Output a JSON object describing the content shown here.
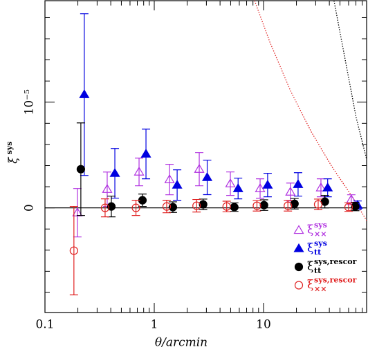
{
  "chart_data": {
    "type": "errorbar",
    "xlabel": "θ/arcmin",
    "ylabel": "ξ",
    "ylabel_superscript": "sys",
    "xscale": "log",
    "xlim": [
      0.1,
      87.7
    ],
    "ylim": [
      -9.9e-06,
      1.96e-05
    ],
    "xticks": [
      0.1,
      1,
      10
    ],
    "xminorticks": [
      0.2,
      0.3,
      0.4,
      0.5,
      0.6,
      0.7,
      0.8,
      0.9,
      2,
      3,
      4,
      5,
      6,
      7,
      8,
      9,
      20,
      30,
      40,
      50,
      60,
      70,
      80
    ],
    "yticks": [
      0,
      {
        "value": 1e-05,
        "label": "10⁻⁵"
      }
    ],
    "yminorticks": [
      -8e-06,
      -6e-06,
      -4e-06,
      -2e-06,
      2e-06,
      4e-06,
      6e-06,
      8e-06,
      1.2e-05,
      1.4e-05,
      1.6e-05,
      1.8e-05
    ],
    "hline": 0,
    "legend": "lower right",
    "series": [
      {
        "name": "ξ",
        "superscript": "sys",
        "subscript": "××",
        "color": "#b030e0",
        "marker": "open-triangle",
        "x": [
          0.198,
          0.371,
          0.726,
          1.38,
          2.58,
          4.97,
          9.3,
          17.6,
          33.5,
          63.5
        ],
        "values": [
          -4.6e-07,
          1.76e-06,
          3.4e-06,
          2.68e-06,
          3.66e-06,
          2.29e-06,
          1.83e-06,
          1.5e-06,
          1.9e-06,
          7.8e-07
        ],
        "errors": [
          2.29e-06,
          1.63e-06,
          1.31e-06,
          1.44e-06,
          1.57e-06,
          1.11e-06,
          9.2e-07,
          8.5e-07,
          8.5e-07,
          4.6e-07
        ]
      },
      {
        "name": "ξ",
        "superscript": "sys",
        "subscript": "tt",
        "color": "#0000e0",
        "marker": "filled-triangle",
        "x": [
          0.229,
          0.436,
          0.84,
          1.62,
          3.05,
          5.85,
          10.9,
          20.7,
          38.6,
          72.5
        ],
        "values": [
          1.072e-05,
          3.27e-06,
          5.1e-06,
          2.16e-06,
          2.88e-06,
          1.83e-06,
          2.16e-06,
          2.22e-06,
          1.9e-06,
          2.6e-07
        ],
        "errors": [
          7.65e-06,
          2.35e-06,
          2.35e-06,
          1.44e-06,
          1.63e-06,
          9.8e-07,
          1.11e-06,
          1.11e-06,
          8.5e-07,
          3.9e-07
        ]
      },
      {
        "name": "ξ",
        "superscript": "sys,rescor",
        "subscript": "tt",
        "color": "#000000",
        "marker": "filled-circle",
        "x": [
          0.213,
          0.405,
          0.78,
          1.48,
          2.8,
          5.4,
          10.1,
          19.2,
          36.4,
          69
        ],
        "values": [
          3.66e-06,
          1.3e-07,
          7.2e-07,
          7e-08,
          3.3e-07,
          7e-08,
          2.6e-07,
          3.9e-07,
          5.9e-07,
          1.3e-07
        ],
        "errors": [
          4.38e-06,
          9.8e-07,
          5.9e-07,
          5e-07,
          5e-07,
          4e-07,
          5e-07,
          5e-07,
          5.9e-07,
          4e-07
        ]
      },
      {
        "name": "ξ",
        "superscript": "sys,rescor",
        "subscript": "××",
        "color": "#e02020",
        "marker": "open-circle",
        "x": [
          0.184,
          0.355,
          0.68,
          1.3,
          2.44,
          4.6,
          8.7,
          16.7,
          31.6,
          60
        ],
        "values": [
          -4.05e-06,
          0,
          0,
          1.3e-07,
          2e-07,
          1.3e-07,
          2e-07,
          2e-07,
          3.3e-07,
          7e-08
        ],
        "errors": [
          4.18e-06,
          8.5e-07,
          7.2e-07,
          5.9e-07,
          5.9e-07,
          5e-07,
          5e-07,
          5e-07,
          5e-07,
          4e-07
        ]
      }
    ],
    "curves": [
      {
        "color": "#e02020",
        "x": [
          8.28,
          11.4,
          17.6,
          27.3,
          42.2,
          65.3,
          87.7
        ],
        "values": [
          1.96e-05,
          1.57e-05,
          1.11e-05,
          7.2e-06,
          3.9e-06,
          1e-06,
          -1.2e-06
        ]
      },
      {
        "color": "#000000",
        "x": [
          44.1,
          56.6,
          70.5,
          87.7
        ],
        "values": [
          1.96e-05,
          1.37e-05,
          8.5e-06,
          4.6e-06
        ]
      }
    ]
  }
}
